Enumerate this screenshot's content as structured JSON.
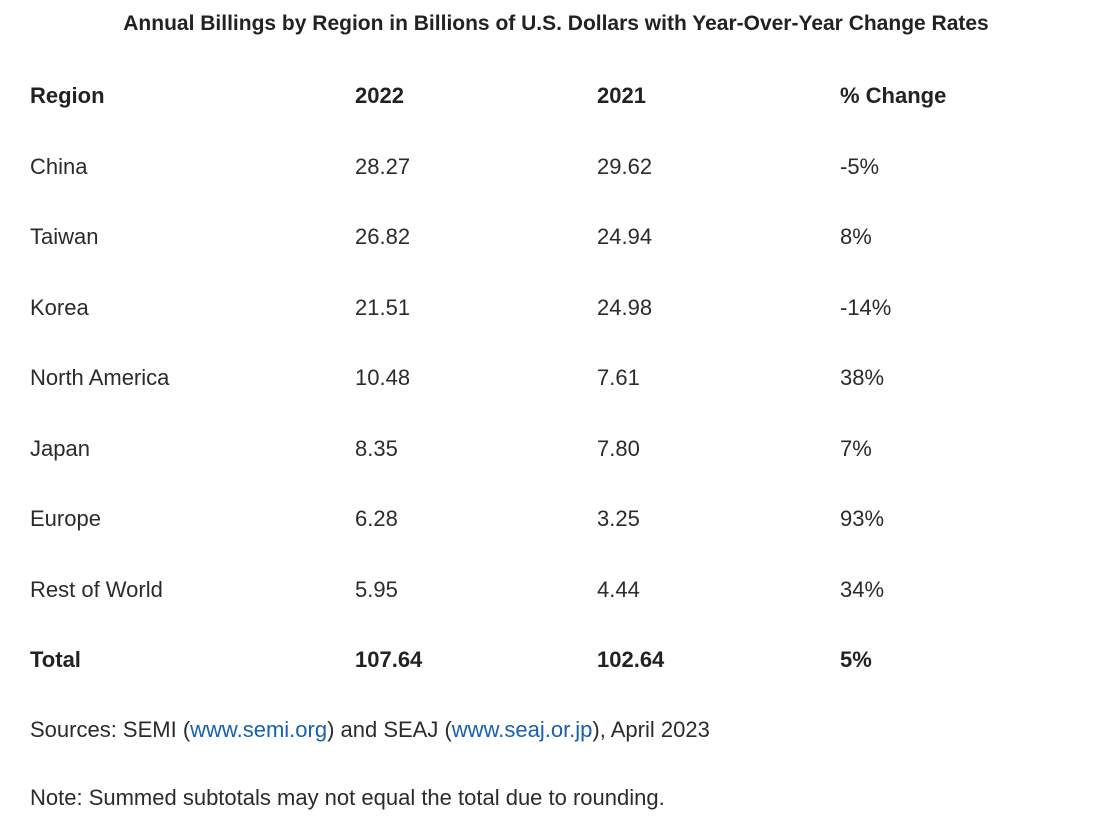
{
  "title": "Annual Billings by Region in Billions of U.S. Dollars with Year-Over-Year Change Rates",
  "headers": [
    "Region",
    "2022",
    "2021",
    "% Change"
  ],
  "rows": [
    [
      "China",
      "28.27",
      "29.62",
      "-5%"
    ],
    [
      "Taiwan",
      "26.82",
      "24.94",
      "8%"
    ],
    [
      "Korea",
      "21.51",
      "24.98",
      "-14%"
    ],
    [
      "North America",
      "10.48",
      "7.61",
      "38%"
    ],
    [
      "Japan",
      "8.35",
      "7.80",
      "7%"
    ],
    [
      "Europe",
      "6.28",
      "3.25",
      "93%"
    ],
    [
      "Rest of World",
      "5.95",
      "4.44",
      "34%"
    ]
  ],
  "total": [
    "Total",
    "107.64",
    "102.64",
    "5%"
  ],
  "sources": {
    "prefix": "Sources: SEMI (",
    "link1": "www.semi.org",
    "middle": ") and SEAJ (",
    "link2": "www.seaj.or.jp",
    "suffix": "), April 2023"
  },
  "note": "Note: Summed subtotals may not equal the total due to rounding."
}
